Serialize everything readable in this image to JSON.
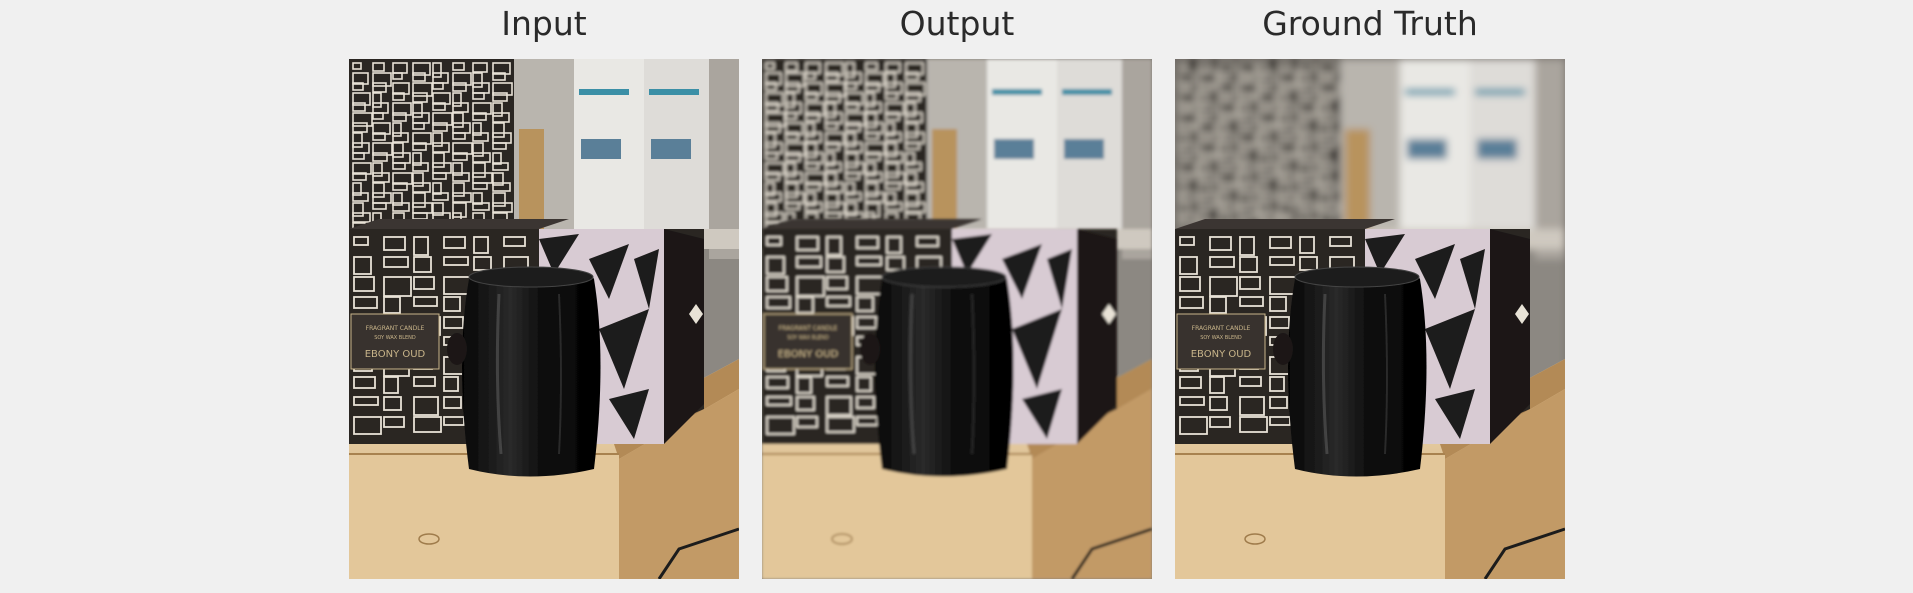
{
  "panels": [
    {
      "id": "input",
      "title": "Input",
      "label_line1": "FRAGRANT CANDLE",
      "label_line2": "SOY WAX BLEND",
      "label_name": "EBONY OUD"
    },
    {
      "id": "output",
      "title": "Output",
      "label_line1": "FRAGRANT CANDLE",
      "label_line2": "SOY WAX BLEND",
      "label_name": "EBONY OUD"
    },
    {
      "id": "ground-truth",
      "title": "Ground Truth",
      "label_line1": "FRAGRANT CANDLE",
      "label_line2": "SOY WAX BLEND",
      "label_name": "EBONY OUD"
    }
  ],
  "colors": {
    "background": "#f0f0f0",
    "title": "#2a2a2a",
    "box_dark": "#2b2724",
    "pattern_light": "#e8e2d6",
    "wood": "#d9b98a",
    "candle": "#141414",
    "gold_text": "#c8b48a"
  }
}
